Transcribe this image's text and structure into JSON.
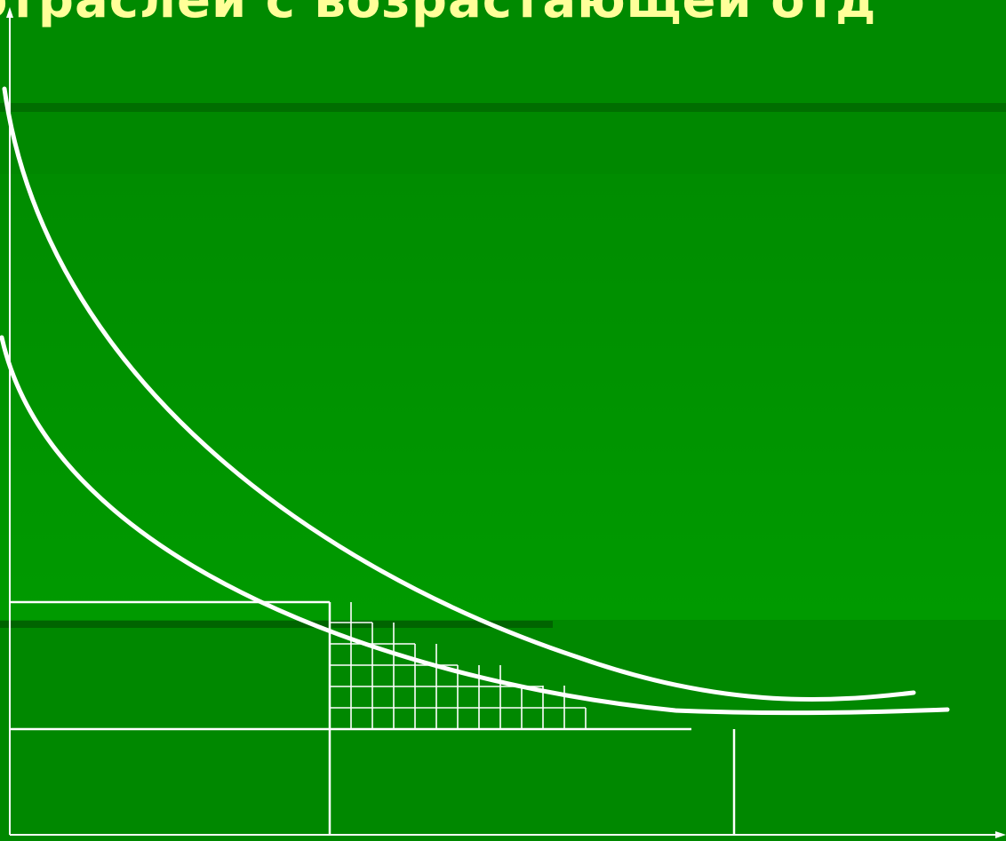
{
  "slide": {
    "title_fragment": "отраслей с возрастающей отд"
  },
  "colors": {
    "background_top": "#008a00",
    "background_middle": "#009a00",
    "background_bottom": "#008800",
    "shadow_band": "#006400",
    "title_text": "#ffff99",
    "line": "#ffffff"
  }
}
